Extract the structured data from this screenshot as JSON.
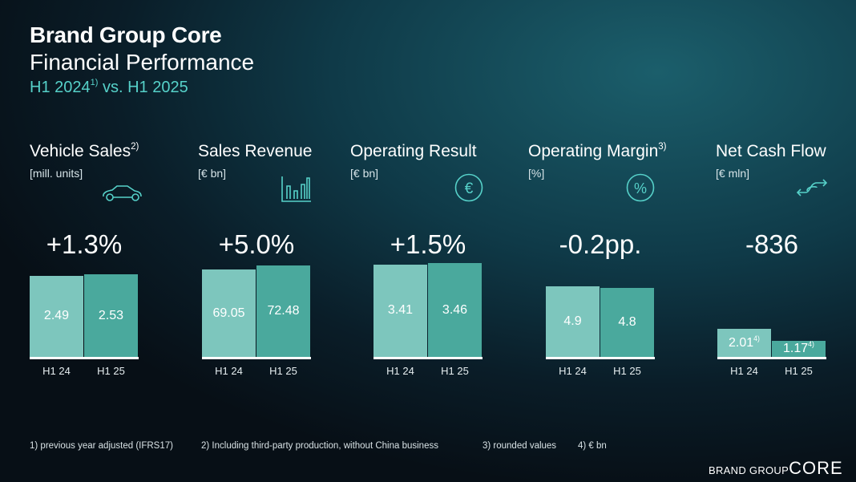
{
  "header": {
    "title": "Brand Group Core",
    "subtitle": "Financial Performance",
    "period_prefix": "H1 2024",
    "period_note": "1)",
    "period_suffix": " vs. H1 2025"
  },
  "colors": {
    "bar_h1_24": "#7dc6bd",
    "bar_h1_25": "#4aa99d",
    "accent": "#56d1c9"
  },
  "chart_data": [
    {
      "type": "bar",
      "title": "Vehicle Sales",
      "note": "2)",
      "unit": "[mill. units]",
      "icon": "car-icon",
      "change": "+1.3%",
      "categories": [
        "H1 24",
        "H1 25"
      ],
      "values": [
        2.49,
        2.53
      ],
      "labels": [
        "2.49",
        "2.53"
      ],
      "label_notes": [
        "",
        ""
      ]
    },
    {
      "type": "bar",
      "title": "Sales Revenue",
      "note": "",
      "unit": "[€ bn]",
      "icon": "bar-chart-icon",
      "change": "+5.0%",
      "categories": [
        "H1 24",
        "H1 25"
      ],
      "values": [
        69.05,
        72.48
      ],
      "labels": [
        "69.05",
        "72.48"
      ],
      "label_notes": [
        "",
        ""
      ]
    },
    {
      "type": "bar",
      "title": "Operating Result",
      "note": "",
      "unit": "[€ bn]",
      "icon": "euro-icon",
      "change": "+1.5%",
      "categories": [
        "H1 24",
        "H1 25"
      ],
      "values": [
        3.41,
        3.46
      ],
      "labels": [
        "3.41",
        "3.46"
      ],
      "label_notes": [
        "",
        ""
      ]
    },
    {
      "type": "bar",
      "title": "Operating Margin",
      "note": "3)",
      "unit": "[%]",
      "icon": "percent-icon",
      "change": "-0.2pp.",
      "categories": [
        "H1 24",
        "H1 25"
      ],
      "values": [
        4.9,
        4.8
      ],
      "labels": [
        "4.9",
        "4.8"
      ],
      "label_notes": [
        "",
        ""
      ]
    },
    {
      "type": "bar",
      "title": "Net Cash Flow",
      "note": "",
      "unit": "[€ mln]",
      "icon": "cash-flow-icon",
      "change": "-836",
      "categories": [
        "H1 24",
        "H1 25"
      ],
      "values": [
        2.01,
        1.17
      ],
      "labels": [
        "2.01",
        "1.17"
      ],
      "label_notes": [
        "4)",
        "4)"
      ]
    }
  ],
  "footnotes": [
    "1) previous year adjusted (IFRS17)",
    "2) Including third-party production, without China business",
    "3) rounded values",
    "4) € bn"
  ],
  "logo": {
    "small": "BRAND GROUP",
    "large": "CORE"
  }
}
